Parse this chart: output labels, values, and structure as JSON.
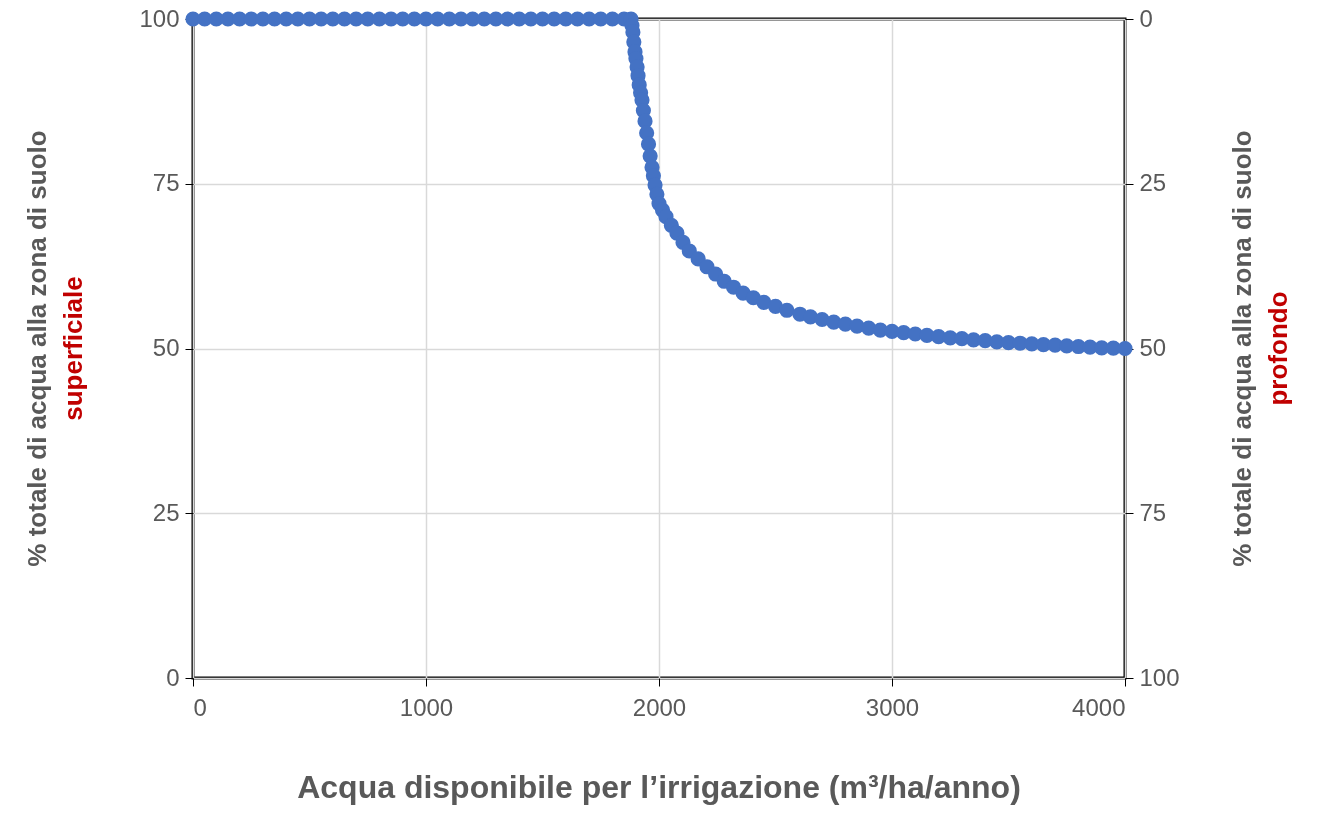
{
  "chart_data": {
    "type": "scatter",
    "xlabel": "Acqua disponibile per l’irrigazione (m³/ha/anno)",
    "ylabel": "% totale di acqua alla zona di suolo\nsuperficiale",
    "y2label": "% totale di acqua alla zona di suolo\nprofondo",
    "xlim": [
      0,
      4000
    ],
    "xticks": [
      0,
      1000,
      2000,
      3000,
      4000
    ],
    "ylim": [
      0,
      100
    ],
    "yticks": [
      0,
      25,
      50,
      75,
      100
    ],
    "y2lim": [
      100,
      0
    ],
    "y2ticks": [
      0,
      25,
      50,
      75,
      100
    ],
    "grid": true,
    "marker": "circle",
    "series": [
      {
        "color": "#4472c4",
        "x": [
          0,
          50,
          100,
          150,
          200,
          250,
          300,
          350,
          400,
          450,
          500,
          550,
          600,
          650,
          700,
          750,
          800,
          850,
          900,
          950,
          1000,
          1050,
          1100,
          1150,
          1200,
          1250,
          1300,
          1350,
          1400,
          1450,
          1500,
          1550,
          1600,
          1650,
          1700,
          1750,
          1800,
          1850,
          1880,
          1884,
          1888,
          1892,
          1897,
          1901,
          1906,
          1910,
          1915,
          1921,
          1927,
          1933,
          1940,
          1947,
          1955,
          1962,
          1970,
          1976,
          1983,
          1991,
          2000,
          2015,
          2030,
          2053,
          2077,
          2103,
          2130,
          2168,
          2206,
          2243,
          2280,
          2320,
          2361,
          2405,
          2450,
          2500,
          2549,
          2605,
          2650,
          2700,
          2750,
          2800,
          2850,
          2900,
          2950,
          3000,
          3050,
          3100,
          3150,
          3200,
          3250,
          3300,
          3350,
          3400,
          3450,
          3500,
          3550,
          3600,
          3650,
          3700,
          3750,
          3800,
          3850,
          3900,
          3950,
          4000
        ],
        "values": [
          100,
          100,
          100,
          100,
          100,
          100,
          100,
          100,
          100,
          100,
          100,
          100,
          100,
          100,
          100,
          100,
          100,
          100,
          100,
          100,
          100,
          100,
          100,
          100,
          100,
          100,
          100,
          100,
          100,
          100,
          100,
          100,
          100,
          100,
          100,
          100,
          100,
          100,
          100,
          99,
          98,
          96.5,
          95,
          94,
          92.7,
          91.4,
          90,
          88.8,
          87.7,
          86.1,
          84.5,
          82.7,
          81,
          79.2,
          77.5,
          76.2,
          74.8,
          73.4,
          72,
          71,
          70,
          68.7,
          67.5,
          66.1,
          64.8,
          63.6,
          62.4,
          61.3,
          60.2,
          59.3,
          58.4,
          57.7,
          57,
          56.4,
          55.8,
          55.2,
          54.8,
          54.4,
          54,
          53.7,
          53.4,
          53.1,
          52.8,
          52.6,
          52.4,
          52.2,
          52,
          51.8,
          51.6,
          51.5,
          51.3,
          51.2,
          51,
          50.9,
          50.8,
          50.7,
          50.6,
          50.5,
          50.4,
          50.3,
          50.2,
          50.1,
          50.05,
          50
        ]
      }
    ]
  }
}
